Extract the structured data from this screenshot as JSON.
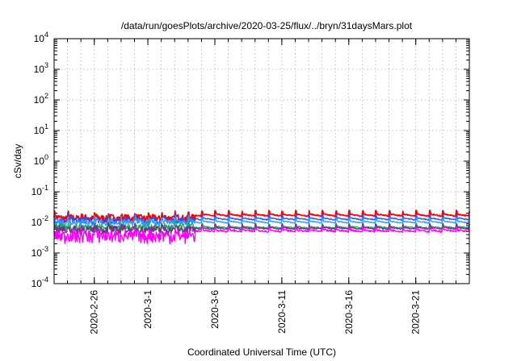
{
  "chart_data": {
    "type": "line",
    "title": "/data/run/goesPlots/archive/2020-03-25/flux/../bryn/31daysMars.plot",
    "xlabel": "Coordinated Universal Time (UTC)",
    "ylabel": "cSv/day",
    "yscale": "log",
    "ylim": [
      0.0001,
      10000
    ],
    "y_ticks": [
      {
        "base": "10",
        "exp": "-4"
      },
      {
        "base": "10",
        "exp": "-3"
      },
      {
        "base": "10",
        "exp": "-2"
      },
      {
        "base": "10",
        "exp": "-1"
      },
      {
        "base": "10",
        "exp": "0"
      },
      {
        "base": "10",
        "exp": "1"
      },
      {
        "base": "10",
        "exp": "2"
      },
      {
        "base": "10",
        "exp": "3"
      },
      {
        "base": "10",
        "exp": "4"
      }
    ],
    "xlim": [
      "2020-02-23",
      "2020-03-25"
    ],
    "x_ticks": [
      "2020-2-26",
      "2020-3-1",
      "2020-3-6",
      "2020-3-11",
      "2020-3-16",
      "2020-3-21"
    ],
    "grid": true,
    "legend": "none",
    "series": [
      {
        "color": "#ff0000",
        "base_before": 0.013,
        "base_after": 0.016,
        "amp": 0.3,
        "noise": 0.25
      },
      {
        "color": "#1f4fff",
        "base_before": 0.011,
        "base_after": 0.012,
        "amp": 0.3,
        "noise": 0.25
      },
      {
        "color": "#3399ee",
        "base_before": 0.0095,
        "base_after": 0.0095,
        "amp": 0.3,
        "noise": 0.22
      },
      {
        "color": "#22aa66",
        "base_before": 0.0065,
        "base_after": 0.0065,
        "amp": 0.25,
        "noise": 0.3
      },
      {
        "color": "#7a2f8a",
        "base_before": 0.0055,
        "base_after": 0.006,
        "amp": 0.25,
        "noise": 0.3
      },
      {
        "color": "#ff00ff",
        "base_before": 0.0035,
        "base_after": 0.005,
        "amp": 0.25,
        "noise": 0.45
      }
    ]
  }
}
